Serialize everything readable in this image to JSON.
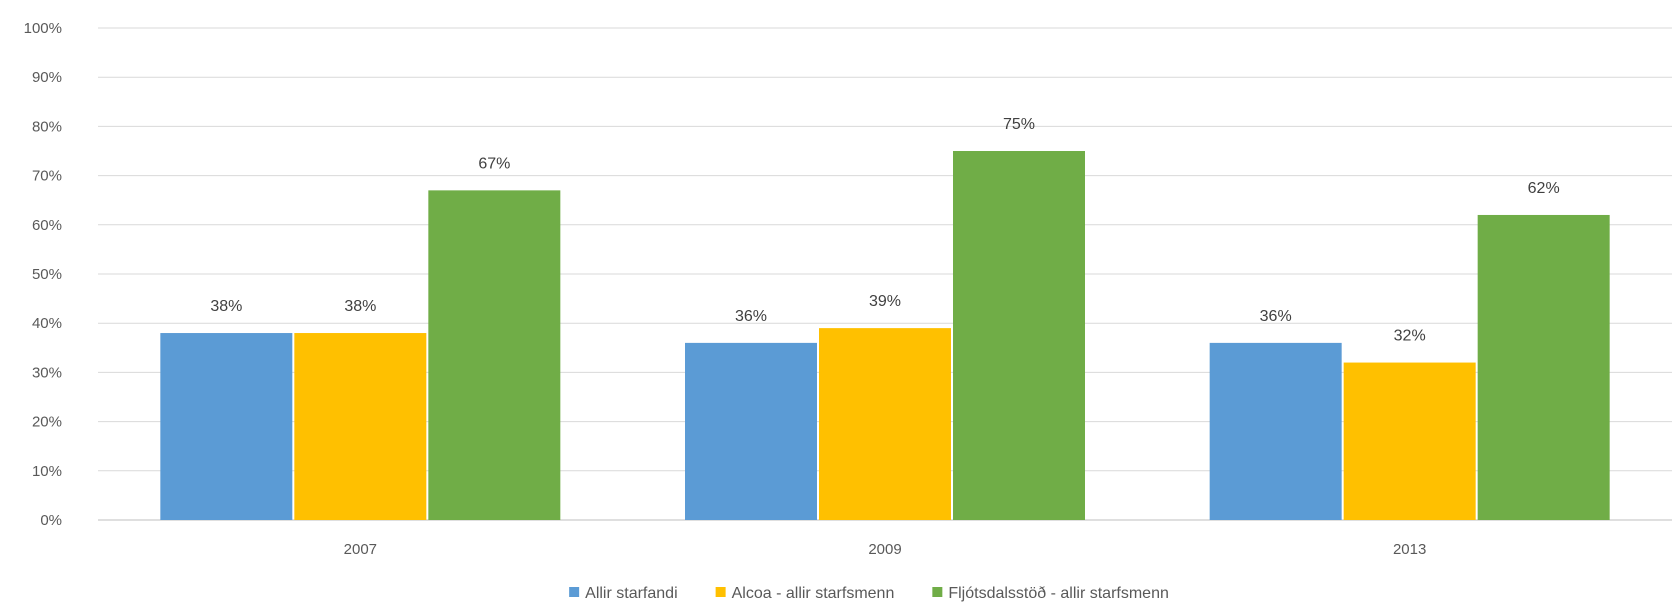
{
  "chart_data": {
    "type": "bar",
    "title": "",
    "xlabel": "",
    "ylabel": "",
    "categories": [
      "2007",
      "2009",
      "2013"
    ],
    "ylim": [
      0,
      100
    ],
    "y_ticks": [
      0,
      10,
      20,
      30,
      40,
      50,
      60,
      70,
      80,
      90,
      100
    ],
    "y_tick_suffix": "%",
    "grid": true,
    "legend_position": "bottom",
    "series": [
      {
        "name": "Allir starfandi",
        "color": "#5B9BD5",
        "values": [
          38,
          36,
          36
        ],
        "labels": [
          "38%",
          "36%",
          "36%"
        ]
      },
      {
        "name": "Alcoa - allir starfsmenn",
        "color": "#FFC000",
        "values": [
          38,
          39,
          32
        ],
        "labels": [
          "38%",
          "39%",
          "32%"
        ]
      },
      {
        "name": "Fljótsdalsstöð - allir starfsmenn",
        "color": "#70AD47",
        "values": [
          67,
          75,
          62
        ],
        "labels": [
          "67%",
          "75%",
          "62%"
        ]
      }
    ]
  }
}
